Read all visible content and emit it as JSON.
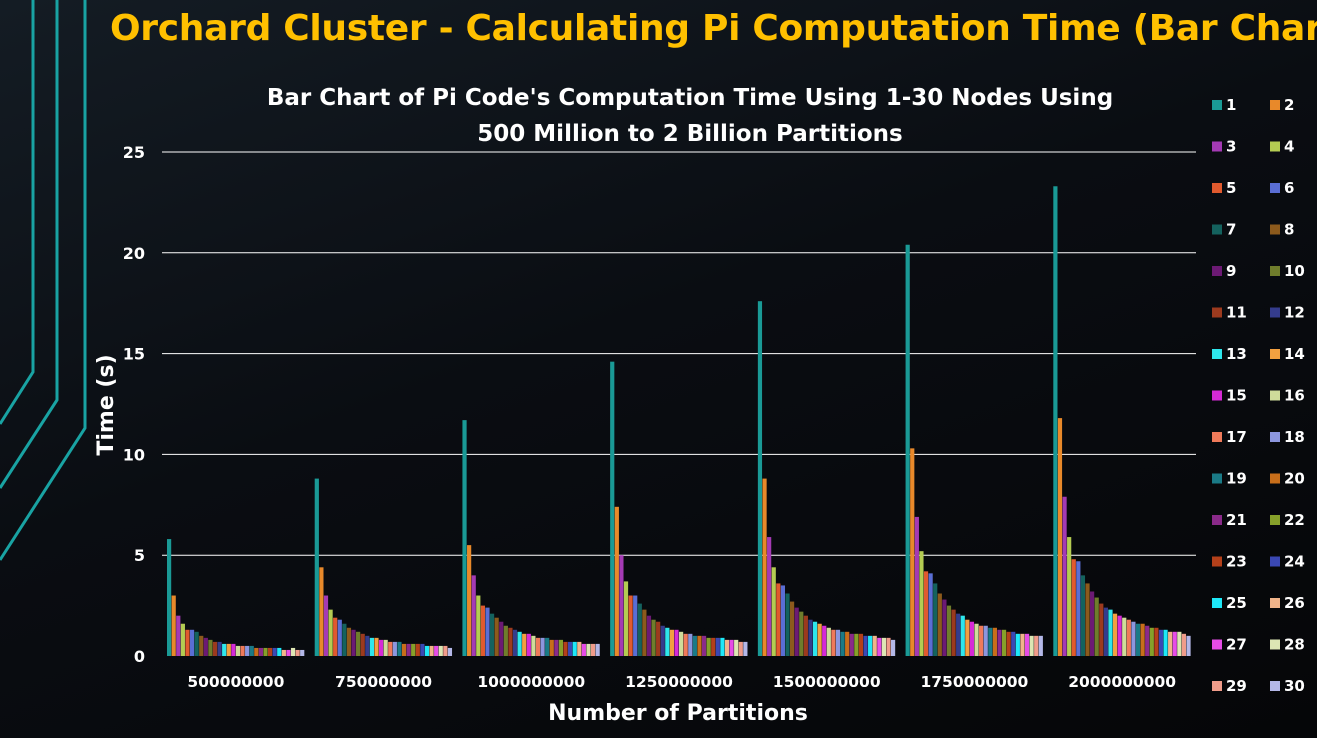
{
  "slide": {
    "title": "Orchard Cluster - Calculating Pi Computation Time (Bar Chart)"
  },
  "colors": {
    "title": "#ffc000",
    "accent_line": "#19a3a3",
    "grid": "#ffffff",
    "text": "#ffffff"
  },
  "chart_data": {
    "type": "bar",
    "title": "Bar Chart of Pi Code's Computation Time Using 1-30 Nodes Using",
    "subtitle": "500 Million to 2 Billion Partitions",
    "xlabel": "Number of Partitions",
    "ylabel": "Time (s)",
    "ylim": [
      0,
      25
    ],
    "yticks": [
      "0",
      "5",
      "10",
      "15",
      "20",
      "25"
    ],
    "grid": true,
    "legend_position": "right",
    "categories": [
      "500000000",
      "750000000",
      "1000000000",
      "1250000000",
      "1500000000",
      "1750000000",
      "2000000000"
    ],
    "series": [
      {
        "name": "1",
        "color": "#1a9a96",
        "values": [
          5.8,
          8.8,
          11.7,
          14.6,
          17.6,
          20.4,
          23.3
        ]
      },
      {
        "name": "2",
        "color": "#e8892a",
        "values": [
          3.0,
          4.4,
          5.5,
          7.4,
          8.8,
          10.3,
          11.8
        ]
      },
      {
        "name": "3",
        "color": "#a43ab4",
        "values": [
          2.0,
          3.0,
          4.0,
          5.0,
          5.9,
          6.9,
          7.9
        ]
      },
      {
        "name": "4",
        "color": "#b4cc52",
        "values": [
          1.6,
          2.3,
          3.0,
          3.7,
          4.4,
          5.2,
          5.9
        ]
      },
      {
        "name": "5",
        "color": "#e05a2e",
        "values": [
          1.3,
          1.9,
          2.5,
          3.0,
          3.6,
          4.2,
          4.8
        ]
      },
      {
        "name": "6",
        "color": "#5a6ed4",
        "values": [
          1.3,
          1.8,
          2.4,
          3.0,
          3.5,
          4.1,
          4.7
        ]
      },
      {
        "name": "7",
        "color": "#14625e",
        "values": [
          1.2,
          1.6,
          2.1,
          2.6,
          3.1,
          3.6,
          4.0
        ]
      },
      {
        "name": "8",
        "color": "#8c5a1c",
        "values": [
          1.0,
          1.4,
          1.9,
          2.3,
          2.7,
          3.1,
          3.6
        ]
      },
      {
        "name": "9",
        "color": "#6c1a74",
        "values": [
          0.9,
          1.3,
          1.7,
          2.0,
          2.4,
          2.8,
          3.2
        ]
      },
      {
        "name": "10",
        "color": "#6f7d2c",
        "values": [
          0.8,
          1.2,
          1.5,
          1.8,
          2.2,
          2.5,
          2.9
        ]
      },
      {
        "name": "11",
        "color": "#9c3a1e",
        "values": [
          0.7,
          1.1,
          1.4,
          1.7,
          2.0,
          2.3,
          2.6
        ]
      },
      {
        "name": "12",
        "color": "#343c8c",
        "values": [
          0.7,
          1.0,
          1.3,
          1.5,
          1.8,
          2.1,
          2.4
        ]
      },
      {
        "name": "13",
        "color": "#2ee6ec",
        "values": [
          0.6,
          0.9,
          1.2,
          1.4,
          1.7,
          2.0,
          2.3
        ]
      },
      {
        "name": "14",
        "color": "#f2a040",
        "values": [
          0.6,
          0.9,
          1.1,
          1.3,
          1.6,
          1.8,
          2.1
        ]
      },
      {
        "name": "15",
        "color": "#d62ad6",
        "values": [
          0.6,
          0.8,
          1.1,
          1.3,
          1.5,
          1.7,
          2.0
        ]
      },
      {
        "name": "16",
        "color": "#cfdc9a",
        "values": [
          0.5,
          0.8,
          1.0,
          1.2,
          1.4,
          1.6,
          1.9
        ]
      },
      {
        "name": "17",
        "color": "#ef7a5a",
        "values": [
          0.5,
          0.7,
          0.9,
          1.1,
          1.3,
          1.5,
          1.8
        ]
      },
      {
        "name": "18",
        "color": "#8c96de",
        "values": [
          0.5,
          0.7,
          0.9,
          1.1,
          1.3,
          1.5,
          1.7
        ]
      },
      {
        "name": "19",
        "color": "#1a7a86",
        "values": [
          0.5,
          0.7,
          0.9,
          1.0,
          1.2,
          1.4,
          1.6
        ]
      },
      {
        "name": "20",
        "color": "#c86e1a",
        "values": [
          0.4,
          0.6,
          0.8,
          1.0,
          1.2,
          1.4,
          1.6
        ]
      },
      {
        "name": "21",
        "color": "#8a2a8a",
        "values": [
          0.4,
          0.6,
          0.8,
          1.0,
          1.1,
          1.3,
          1.5
        ]
      },
      {
        "name": "22",
        "color": "#86a02a",
        "values": [
          0.4,
          0.6,
          0.8,
          0.9,
          1.1,
          1.3,
          1.4
        ]
      },
      {
        "name": "23",
        "color": "#b4401a",
        "values": [
          0.4,
          0.6,
          0.7,
          0.9,
          1.1,
          1.2,
          1.4
        ]
      },
      {
        "name": "24",
        "color": "#3a48b4",
        "values": [
          0.4,
          0.6,
          0.7,
          0.9,
          1.0,
          1.2,
          1.3
        ]
      },
      {
        "name": "25",
        "color": "#1ee8f8",
        "values": [
          0.4,
          0.5,
          0.7,
          0.9,
          1.0,
          1.1,
          1.3
        ]
      },
      {
        "name": "26",
        "color": "#f0b48a",
        "values": [
          0.3,
          0.5,
          0.7,
          0.8,
          1.0,
          1.1,
          1.2
        ]
      },
      {
        "name": "27",
        "color": "#e64ce6",
        "values": [
          0.3,
          0.5,
          0.6,
          0.8,
          0.9,
          1.1,
          1.2
        ]
      },
      {
        "name": "28",
        "color": "#dde6b4",
        "values": [
          0.4,
          0.5,
          0.6,
          0.8,
          0.9,
          1.0,
          1.2
        ]
      },
      {
        "name": "29",
        "color": "#f09c8a",
        "values": [
          0.3,
          0.5,
          0.6,
          0.7,
          0.9,
          1.0,
          1.1
        ]
      },
      {
        "name": "30",
        "color": "#b4b8e8",
        "values": [
          0.3,
          0.4,
          0.6,
          0.7,
          0.8,
          1.0,
          1.0
        ]
      }
    ]
  }
}
